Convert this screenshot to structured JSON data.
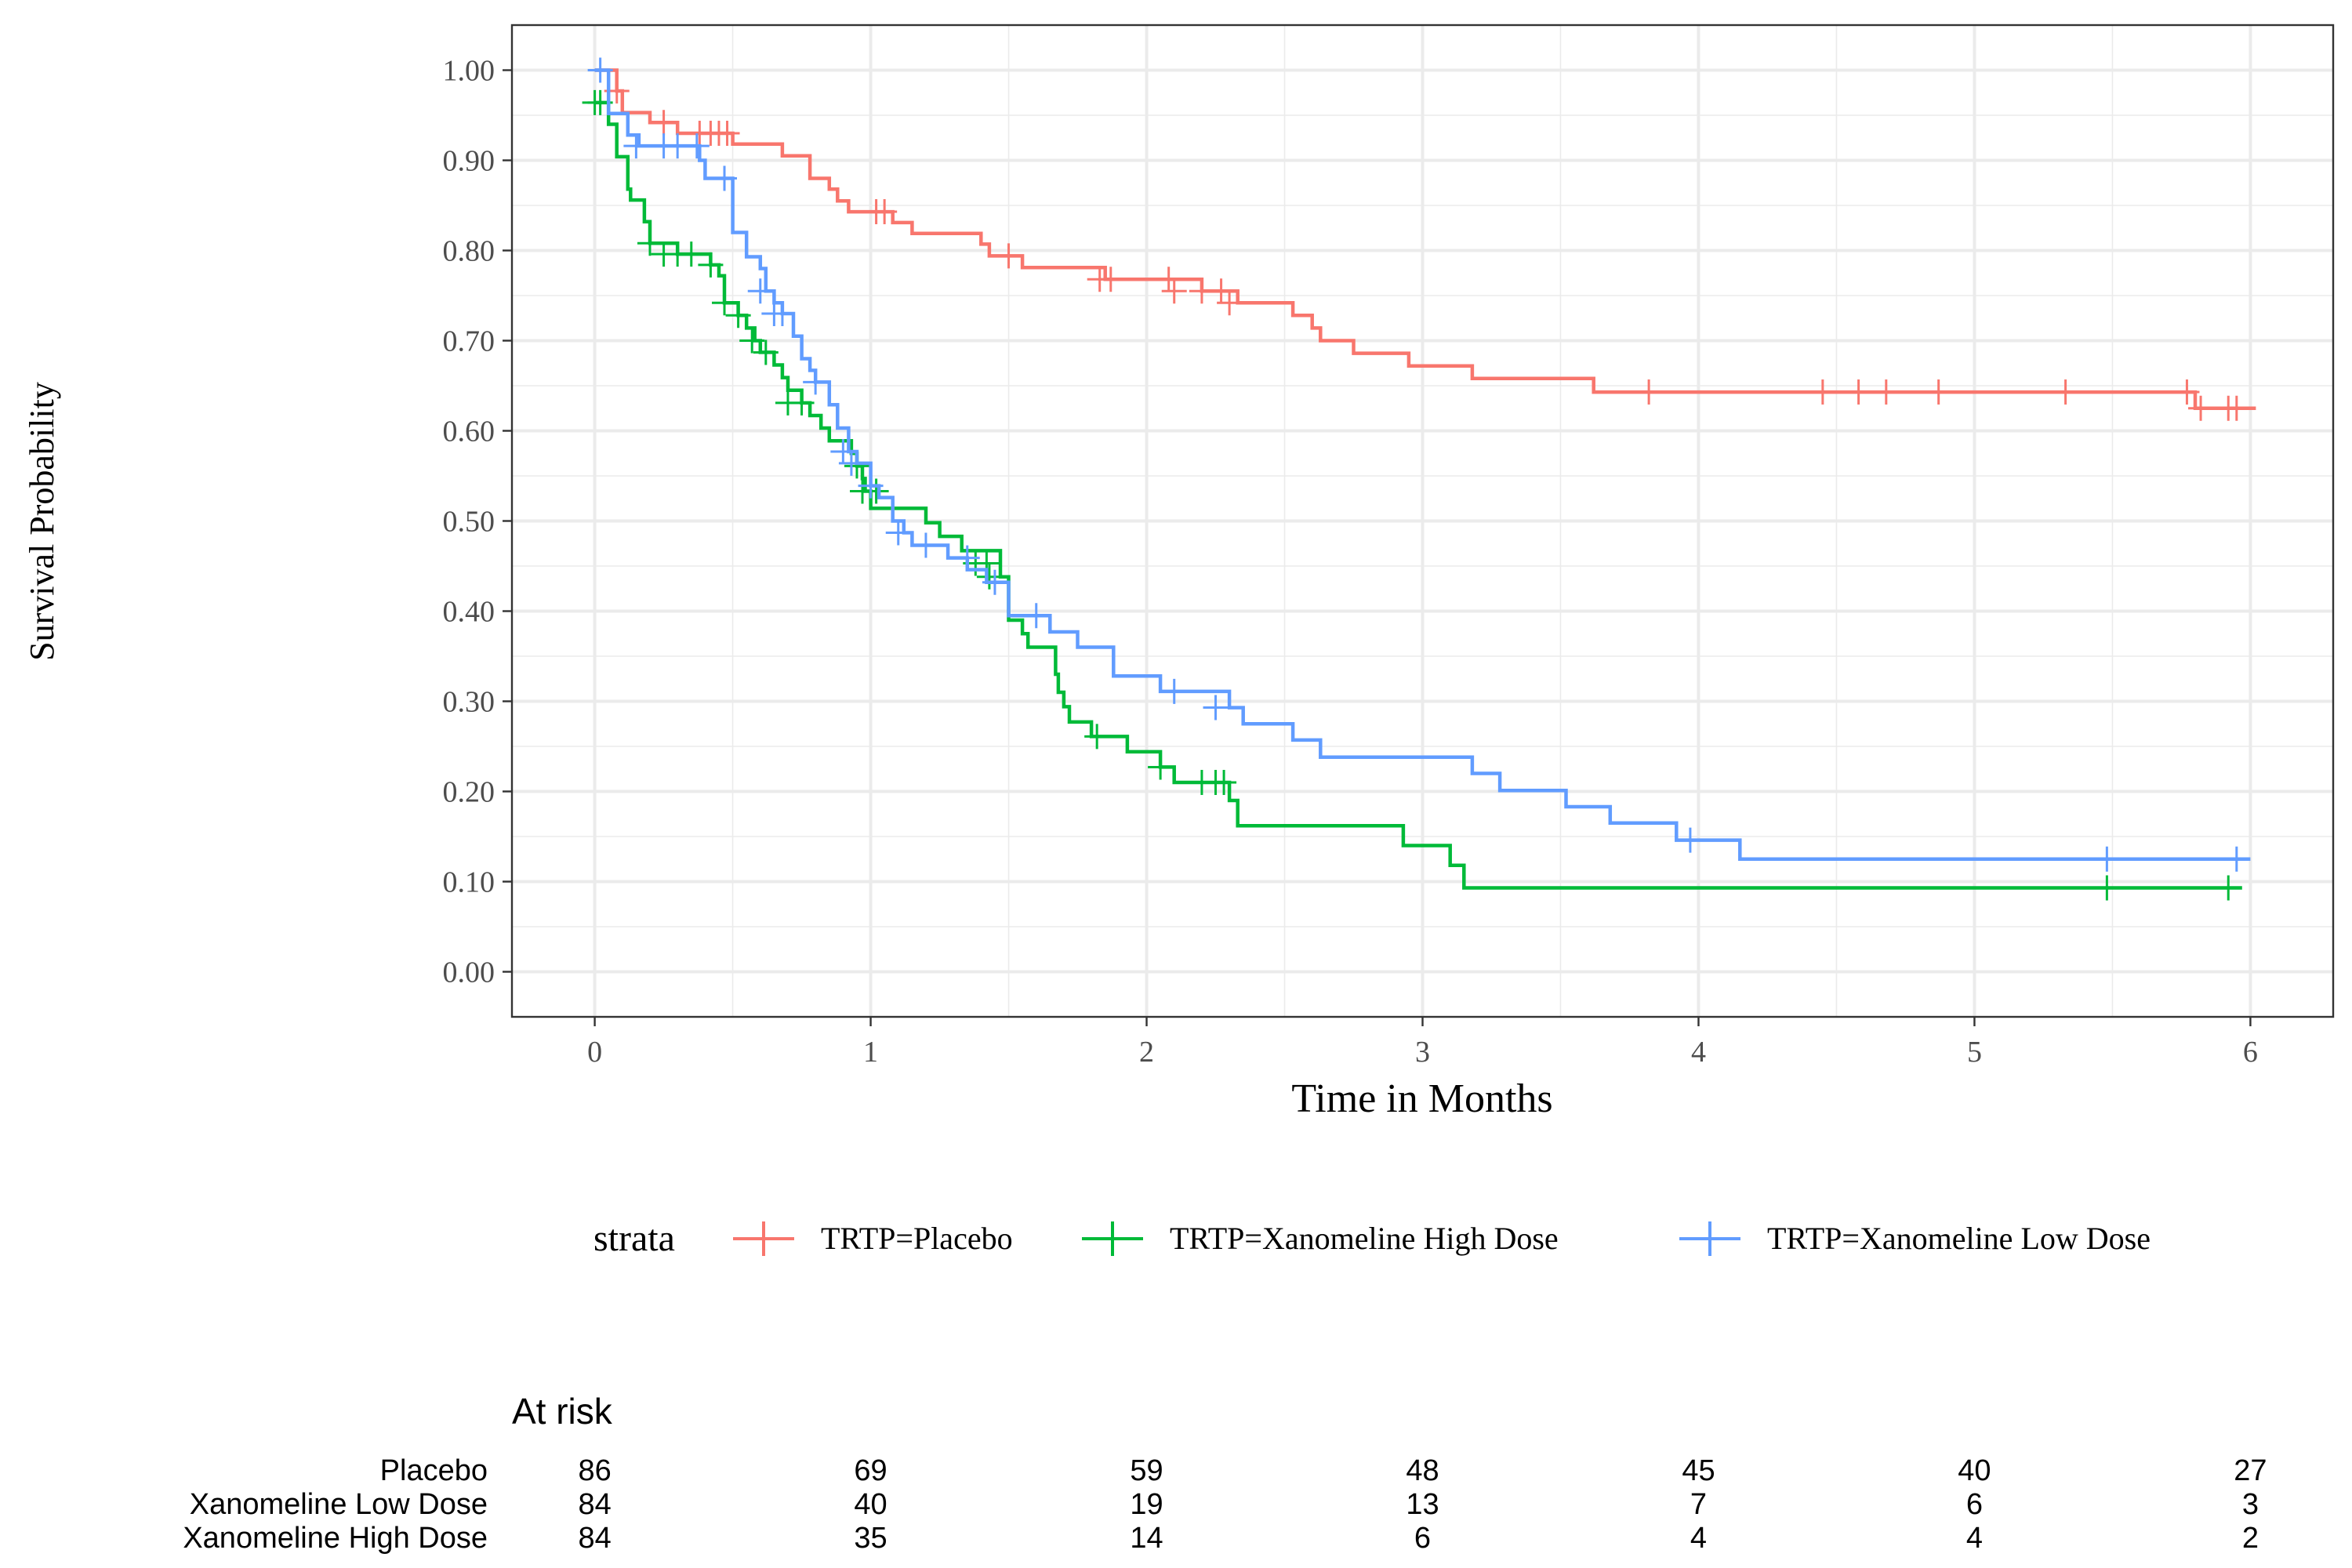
{
  "chart_data": {
    "type": "line",
    "subtype": "kaplan-meier step curves",
    "xlabel": "Time in Months",
    "ylabel": "Survival Probability",
    "xlim": [
      -0.3,
      6.3
    ],
    "ylim": [
      -0.05,
      1.05
    ],
    "x_ticks": [
      "0",
      "1",
      "2",
      "3",
      "4",
      "5",
      "6"
    ],
    "y_ticks": [
      "0.00",
      "0.10",
      "0.20",
      "0.30",
      "0.40",
      "0.50",
      "0.60",
      "0.70",
      "0.80",
      "0.90",
      "1.00"
    ],
    "grid": true,
    "legend": {
      "title": "strata",
      "placement": "bottom",
      "entries": [
        "TRTP=Placebo",
        "TRTP=Xanomeline High Dose",
        "TRTP=Xanomeline Low Dose"
      ]
    },
    "series": [
      {
        "name": "TRTP=Placebo",
        "color": "#F8766D",
        "steps": [
          [
            0,
            1.0
          ],
          [
            0.08,
            0.977
          ],
          [
            0.1,
            0.953
          ],
          [
            0.2,
            0.942
          ],
          [
            0.3,
            0.93
          ],
          [
            0.5,
            0.918
          ],
          [
            0.68,
            0.905
          ],
          [
            0.78,
            0.88
          ],
          [
            0.85,
            0.868
          ],
          [
            0.88,
            0.855
          ],
          [
            0.92,
            0.843
          ],
          [
            1.08,
            0.831
          ],
          [
            1.15,
            0.819
          ],
          [
            1.4,
            0.807
          ],
          [
            1.43,
            0.794
          ],
          [
            1.55,
            0.781
          ],
          [
            1.85,
            0.768
          ],
          [
            2.2,
            0.755
          ],
          [
            2.33,
            0.742
          ],
          [
            2.53,
            0.728
          ],
          [
            2.6,
            0.714
          ],
          [
            2.63,
            0.7
          ],
          [
            2.75,
            0.686
          ],
          [
            2.95,
            0.672
          ],
          [
            3.18,
            0.658
          ],
          [
            3.62,
            0.643
          ],
          [
            5.8,
            0.625
          ],
          [
            6.02,
            0.625
          ]
        ],
        "censored": [
          [
            0.08,
            0.977
          ],
          [
            0.25,
            0.942
          ],
          [
            0.38,
            0.93
          ],
          [
            0.42,
            0.93
          ],
          [
            0.45,
            0.93
          ],
          [
            0.48,
            0.93
          ],
          [
            1.02,
            0.843
          ],
          [
            1.05,
            0.843
          ],
          [
            1.5,
            0.794
          ],
          [
            1.83,
            0.768
          ],
          [
            1.87,
            0.768
          ],
          [
            2.08,
            0.768
          ],
          [
            2.1,
            0.755
          ],
          [
            2.2,
            0.755
          ],
          [
            2.27,
            0.755
          ],
          [
            2.3,
            0.742
          ],
          [
            3.82,
            0.643
          ],
          [
            4.45,
            0.643
          ],
          [
            4.58,
            0.643
          ],
          [
            4.68,
            0.643
          ],
          [
            4.87,
            0.643
          ],
          [
            5.33,
            0.643
          ],
          [
            5.77,
            0.643
          ],
          [
            5.82,
            0.625
          ],
          [
            5.92,
            0.625
          ],
          [
            5.95,
            0.625
          ]
        ]
      },
      {
        "name": "TRTP=Xanomeline High Dose",
        "color": "#00BA38",
        "steps": [
          [
            0,
            0.964
          ],
          [
            0.05,
            0.94
          ],
          [
            0.08,
            0.904
          ],
          [
            0.12,
            0.868
          ],
          [
            0.13,
            0.856
          ],
          [
            0.18,
            0.832
          ],
          [
            0.2,
            0.808
          ],
          [
            0.3,
            0.796
          ],
          [
            0.42,
            0.784
          ],
          [
            0.45,
            0.772
          ],
          [
            0.47,
            0.742
          ],
          [
            0.52,
            0.728
          ],
          [
            0.55,
            0.714
          ],
          [
            0.58,
            0.7
          ],
          [
            0.6,
            0.687
          ],
          [
            0.65,
            0.673
          ],
          [
            0.68,
            0.659
          ],
          [
            0.7,
            0.645
          ],
          [
            0.75,
            0.631
          ],
          [
            0.78,
            0.617
          ],
          [
            0.82,
            0.603
          ],
          [
            0.85,
            0.589
          ],
          [
            0.93,
            0.575
          ],
          [
            0.95,
            0.561
          ],
          [
            0.97,
            0.547
          ],
          [
            0.98,
            0.533
          ],
          [
            1.0,
            0.514
          ],
          [
            1.2,
            0.498
          ],
          [
            1.25,
            0.483
          ],
          [
            1.33,
            0.467
          ],
          [
            1.47,
            0.438
          ],
          [
            1.5,
            0.39
          ],
          [
            1.55,
            0.375
          ],
          [
            1.57,
            0.36
          ],
          [
            1.67,
            0.33
          ],
          [
            1.68,
            0.31
          ],
          [
            1.7,
            0.294
          ],
          [
            1.72,
            0.277
          ],
          [
            1.8,
            0.261
          ],
          [
            1.93,
            0.244
          ],
          [
            2.05,
            0.227
          ],
          [
            2.1,
            0.21
          ],
          [
            2.3,
            0.19
          ],
          [
            2.33,
            0.162
          ],
          [
            2.93,
            0.14
          ],
          [
            3.1,
            0.118
          ],
          [
            3.15,
            0.093
          ],
          [
            5.97,
            0.093
          ]
        ],
        "censored": [
          [
            0,
            0.964
          ],
          [
            0.02,
            0.964
          ],
          [
            0.2,
            0.808
          ],
          [
            0.25,
            0.796
          ],
          [
            0.3,
            0.796
          ],
          [
            0.35,
            0.796
          ],
          [
            0.42,
            0.784
          ],
          [
            0.47,
            0.742
          ],
          [
            0.52,
            0.728
          ],
          [
            0.57,
            0.7
          ],
          [
            0.62,
            0.687
          ],
          [
            0.7,
            0.631
          ],
          [
            0.75,
            0.631
          ],
          [
            0.95,
            0.561
          ],
          [
            0.97,
            0.533
          ],
          [
            1.02,
            0.533
          ],
          [
            1.38,
            0.453
          ],
          [
            1.42,
            0.453
          ],
          [
            1.43,
            0.438
          ],
          [
            1.82,
            0.261
          ],
          [
            2.05,
            0.227
          ],
          [
            2.2,
            0.21
          ],
          [
            2.25,
            0.21
          ],
          [
            2.28,
            0.21
          ],
          [
            5.48,
            0.093
          ],
          [
            5.92,
            0.093
          ]
        ]
      },
      {
        "name": "TRTP=Xanomeline Low Dose",
        "color": "#619CFF",
        "steps": [
          [
            0,
            1.0
          ],
          [
            0.05,
            0.952
          ],
          [
            0.12,
            0.928
          ],
          [
            0.16,
            0.916
          ],
          [
            0.38,
            0.9
          ],
          [
            0.4,
            0.88
          ],
          [
            0.5,
            0.82
          ],
          [
            0.55,
            0.793
          ],
          [
            0.6,
            0.78
          ],
          [
            0.62,
            0.755
          ],
          [
            0.65,
            0.742
          ],
          [
            0.68,
            0.73
          ],
          [
            0.72,
            0.705
          ],
          [
            0.75,
            0.68
          ],
          [
            0.78,
            0.667
          ],
          [
            0.8,
            0.654
          ],
          [
            0.85,
            0.629
          ],
          [
            0.88,
            0.603
          ],
          [
            0.92,
            0.577
          ],
          [
            0.95,
            0.564
          ],
          [
            1.0,
            0.539
          ],
          [
            1.03,
            0.526
          ],
          [
            1.08,
            0.5
          ],
          [
            1.12,
            0.487
          ],
          [
            1.15,
            0.473
          ],
          [
            1.28,
            0.459
          ],
          [
            1.35,
            0.446
          ],
          [
            1.42,
            0.432
          ],
          [
            1.5,
            0.395
          ],
          [
            1.65,
            0.377
          ],
          [
            1.75,
            0.36
          ],
          [
            1.88,
            0.328
          ],
          [
            2.05,
            0.311
          ],
          [
            2.3,
            0.293
          ],
          [
            2.35,
            0.275
          ],
          [
            2.53,
            0.257
          ],
          [
            2.63,
            0.238
          ],
          [
            3.18,
            0.22
          ],
          [
            3.28,
            0.201
          ],
          [
            3.52,
            0.183
          ],
          [
            3.68,
            0.165
          ],
          [
            3.92,
            0.146
          ],
          [
            4.15,
            0.125
          ],
          [
            6.0,
            0.125
          ]
        ],
        "censored": [
          [
            0.02,
            1.0
          ],
          [
            0.15,
            0.916
          ],
          [
            0.25,
            0.916
          ],
          [
            0.3,
            0.916
          ],
          [
            0.37,
            0.916
          ],
          [
            0.47,
            0.88
          ],
          [
            0.6,
            0.755
          ],
          [
            0.65,
            0.73
          ],
          [
            0.68,
            0.73
          ],
          [
            0.8,
            0.654
          ],
          [
            0.9,
            0.577
          ],
          [
            0.93,
            0.564
          ],
          [
            1.0,
            0.539
          ],
          [
            1.1,
            0.487
          ],
          [
            1.2,
            0.473
          ],
          [
            1.35,
            0.459
          ],
          [
            1.45,
            0.432
          ],
          [
            1.6,
            0.395
          ],
          [
            2.1,
            0.311
          ],
          [
            2.25,
            0.293
          ],
          [
            3.97,
            0.146
          ],
          [
            5.48,
            0.125
          ],
          [
            5.95,
            0.125
          ]
        ]
      }
    ],
    "at_risk_table": {
      "title": "At risk",
      "times": [
        0,
        1,
        2,
        3,
        4,
        5,
        6
      ],
      "rows": [
        {
          "label": "Placebo",
          "counts": [
            86,
            69,
            59,
            48,
            45,
            40,
            27
          ]
        },
        {
          "label": "Xanomeline Low Dose",
          "counts": [
            84,
            40,
            19,
            13,
            7,
            6,
            3
          ]
        },
        {
          "label": "Xanomeline High Dose",
          "counts": [
            84,
            35,
            14,
            6,
            4,
            4,
            2
          ]
        }
      ]
    }
  }
}
